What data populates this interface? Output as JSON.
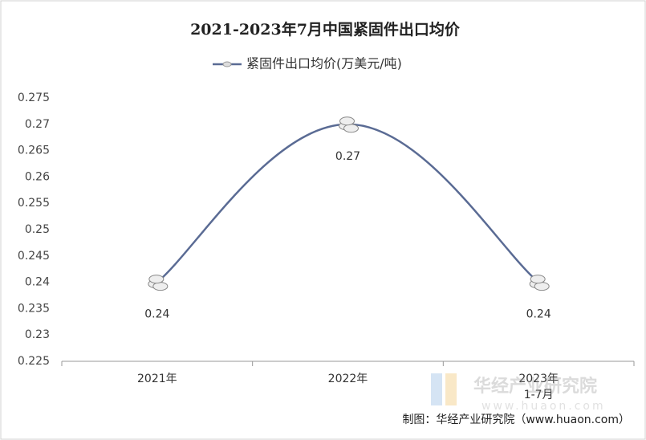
{
  "chart_data": {
    "type": "line",
    "title": "2021-2023年7月中国紧固件出口均价",
    "categories": [
      "2021年",
      "2022年",
      "2023年\n1-7月"
    ],
    "series": [
      {
        "name": "紧固件出口均价(万美元/吨)",
        "color": "#5a6b94",
        "values": [
          0.24,
          0.27,
          0.24
        ]
      }
    ],
    "ylim": [
      0.225,
      0.275
    ],
    "yticks": [
      0.225,
      0.23,
      0.235,
      0.24,
      0.245,
      0.25,
      0.255,
      0.26,
      0.265,
      0.27,
      0.275
    ],
    "legend": "top",
    "grid": false,
    "smooth": true,
    "source": "制图：华经产业研究院（www.huaon.com）",
    "watermark": [
      "华经产业研究院",
      "www.huaon.com"
    ]
  }
}
